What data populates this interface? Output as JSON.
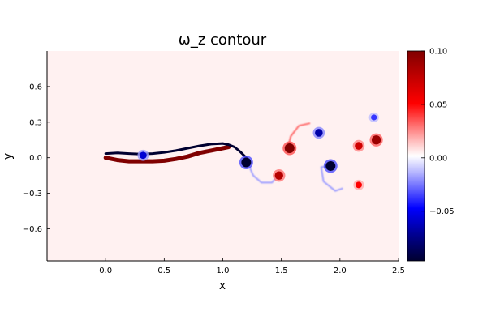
{
  "chart_data": {
    "type": "heatmap",
    "title": "ω_z contour",
    "xlabel": "x",
    "ylabel": "y",
    "xlim": [
      -0.5,
      2.5
    ],
    "ylim": [
      -0.87,
      0.9
    ],
    "xticks": [
      0.0,
      0.5,
      1.0,
      1.5,
      2.0,
      2.5
    ],
    "xtick_labels": [
      "0.0",
      "0.5",
      "1.0",
      "1.5",
      "2.0",
      "2.5"
    ],
    "yticks": [
      0.6,
      0.3,
      0.0,
      -0.3,
      -0.6
    ],
    "ytick_labels": [
      "0.6",
      "0.3",
      "0.0",
      "−0.3",
      "−0.6"
    ],
    "colorbar": {
      "min": -0.1,
      "max": 0.1,
      "ticks": [
        0.1,
        0.05,
        0.0,
        -0.05
      ],
      "tick_labels": [
        "0.10",
        "0.05",
        "0.00",
        "−0.05"
      ],
      "colormap": "seismic",
      "low_color": "#000030",
      "mid_color": "#ffffff",
      "high_color": "#800000"
    },
    "grid": false,
    "background_value": 0.003,
    "vortices": [
      {
        "x": 1.2,
        "y": -0.04,
        "value": -0.1
      },
      {
        "x": 1.57,
        "y": 0.08,
        "value": 0.1
      },
      {
        "x": 1.48,
        "y": -0.15,
        "value": 0.08
      },
      {
        "x": 1.82,
        "y": 0.21,
        "value": -0.07
      },
      {
        "x": 1.92,
        "y": -0.07,
        "value": -0.1
      },
      {
        "x": 2.16,
        "y": 0.1,
        "value": 0.07
      },
      {
        "x": 2.31,
        "y": 0.15,
        "value": 0.09
      },
      {
        "x": 2.29,
        "y": 0.34,
        "value": -0.04
      },
      {
        "x": 2.16,
        "y": -0.23,
        "value": 0.05
      },
      {
        "x": 0.32,
        "y": 0.02,
        "value": -0.06
      }
    ],
    "wake_arcs": [
      {
        "x": [
          1.55,
          1.58,
          1.65,
          1.74
        ],
        "y": [
          0.06,
          0.18,
          0.27,
          0.29
        ],
        "value": 0.03
      },
      {
        "x": [
          1.48,
          1.42,
          1.33,
          1.26,
          1.22
        ],
        "y": [
          -0.14,
          -0.21,
          -0.21,
          -0.15,
          -0.06
        ],
        "value": -0.02
      },
      {
        "x": [
          1.92,
          1.84,
          1.86,
          1.96,
          2.02
        ],
        "y": [
          -0.07,
          -0.08,
          -0.2,
          -0.28,
          -0.26
        ],
        "value": -0.02
      }
    ],
    "filament_lower": {
      "x": [
        0.0,
        0.1,
        0.2,
        0.3,
        0.4,
        0.5,
        0.6,
        0.7,
        0.8,
        0.9,
        1.0,
        1.05
      ],
      "y": [
        0.0,
        -0.02,
        -0.03,
        -0.03,
        -0.03,
        -0.025,
        -0.01,
        0.01,
        0.04,
        0.06,
        0.08,
        0.09
      ],
      "value": 0.1
    },
    "filament_upper": {
      "x": [
        0.0,
        0.1,
        0.2,
        0.3,
        0.4,
        0.5,
        0.6,
        0.7,
        0.8,
        0.9,
        1.0,
        1.05,
        1.1,
        1.15,
        1.2
      ],
      "y": [
        0.035,
        0.04,
        0.035,
        0.03,
        0.035,
        0.045,
        0.06,
        0.08,
        0.1,
        0.115,
        0.12,
        0.11,
        0.09,
        0.05,
        0.0
      ],
      "value": -0.1
    }
  }
}
